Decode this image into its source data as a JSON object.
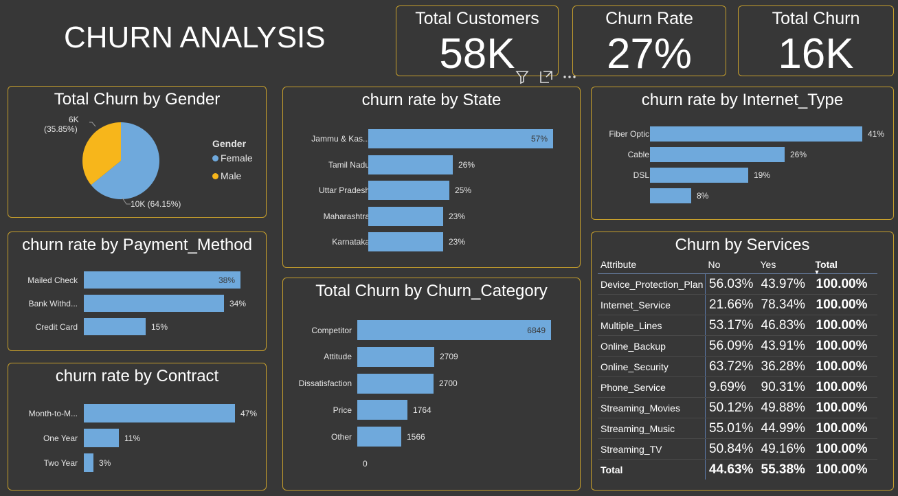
{
  "title": "CHURN ANALYSIS",
  "kpis": [
    {
      "label": "Total Customers",
      "value": "58K"
    },
    {
      "label": "Churn Rate",
      "value": "27%"
    },
    {
      "label": "Total Churn",
      "value": "16K"
    }
  ],
  "colors": {
    "accent": "#c8a02c",
    "bar": "#6fa9dc",
    "female": "#6fa9dc",
    "male": "#f7b61b",
    "background": "#373737"
  },
  "toolbar": {
    "filter_icon": "filter-icon",
    "focus_icon": "focus-mode-icon",
    "more_icon": "more-options-icon"
  },
  "gender_chart": {
    "title": "Total Churn by Gender",
    "legend_title": "Gender",
    "legend": [
      "Female",
      "Male"
    ],
    "male_label_value": "6K",
    "male_label_pct": "(35.85%)",
    "female_label": "10K (64.15%)"
  },
  "state_chart": {
    "title": "churn rate by State"
  },
  "internet_chart": {
    "title": "churn rate by Internet_Type"
  },
  "payment_chart": {
    "title": "churn rate by Payment_Method"
  },
  "category_chart": {
    "title": "Total Churn by Churn_Category",
    "axis_zero": "0"
  },
  "contract_chart": {
    "title": "churn rate by Contract"
  },
  "services_table": {
    "title": "Churn by Services",
    "headers": [
      "Attribute",
      "No",
      "Yes",
      "Total"
    ],
    "rows": [
      [
        "Device_Protection_Plan",
        "56.03%",
        "43.97%",
        "100.00%"
      ],
      [
        "Internet_Service",
        "21.66%",
        "78.34%",
        "100.00%"
      ],
      [
        "Multiple_Lines",
        "53.17%",
        "46.83%",
        "100.00%"
      ],
      [
        "Online_Backup",
        "56.09%",
        "43.91%",
        "100.00%"
      ],
      [
        "Online_Security",
        "63.72%",
        "36.28%",
        "100.00%"
      ],
      [
        "Phone_Service",
        "9.69%",
        "90.31%",
        "100.00%"
      ],
      [
        "Streaming_Movies",
        "50.12%",
        "49.88%",
        "100.00%"
      ],
      [
        "Streaming_Music",
        "55.01%",
        "44.99%",
        "100.00%"
      ],
      [
        "Streaming_TV",
        "50.84%",
        "49.16%",
        "100.00%"
      ]
    ],
    "total_row": [
      "Total",
      "44.63%",
      "55.38%",
      "100.00%"
    ]
  },
  "chart_data": [
    {
      "type": "pie",
      "title": "Total Churn by Gender",
      "categories": [
        "Female",
        "Male"
      ],
      "values": [
        64.15,
        35.85
      ],
      "labels": [
        "10K (64.15%)",
        "6K (35.85%)"
      ],
      "legend": "right"
    },
    {
      "type": "bar",
      "title": "churn rate by State",
      "categories": [
        "Jammu & Kas...",
        "Tamil Nadu",
        "Uttar Pradesh",
        "Maharashtra",
        "Karnataka"
      ],
      "values": [
        57,
        26,
        25,
        23,
        23
      ],
      "labels": [
        "57%",
        "26%",
        "25%",
        "23%",
        "23%"
      ],
      "xlim": [
        0,
        57
      ]
    },
    {
      "type": "bar",
      "title": "churn rate by Internet_Type",
      "categories": [
        "Fiber Optic",
        "Cable",
        "DSL",
        ""
      ],
      "values": [
        41,
        26,
        19,
        8
      ],
      "labels": [
        "41%",
        "26%",
        "19%",
        "8%"
      ],
      "xlim": [
        0,
        41
      ]
    },
    {
      "type": "bar",
      "title": "churn rate by Payment_Method",
      "categories": [
        "Mailed Check",
        "Bank Withd...",
        "Credit Card"
      ],
      "values": [
        38,
        34,
        15
      ],
      "labels": [
        "38%",
        "34%",
        "15%"
      ],
      "xlim": [
        0,
        38
      ]
    },
    {
      "type": "bar",
      "title": "Total Churn by Churn_Category",
      "categories": [
        "Competitor",
        "Attitude",
        "Dissatisfaction",
        "Price",
        "Other",
        ""
      ],
      "values": [
        6849,
        2709,
        2700,
        1764,
        1566,
        0
      ],
      "labels": [
        "6849",
        "2709",
        "2700",
        "1764",
        "1566",
        "0"
      ],
      "xlim": [
        0,
        6849
      ]
    },
    {
      "type": "bar",
      "title": "churn rate by Contract",
      "categories": [
        "Month-to-M...",
        "One Year",
        "Two Year"
      ],
      "values": [
        47,
        11,
        3
      ],
      "labels": [
        "47%",
        "11%",
        "3%"
      ],
      "xlim": [
        0,
        47
      ]
    }
  ]
}
